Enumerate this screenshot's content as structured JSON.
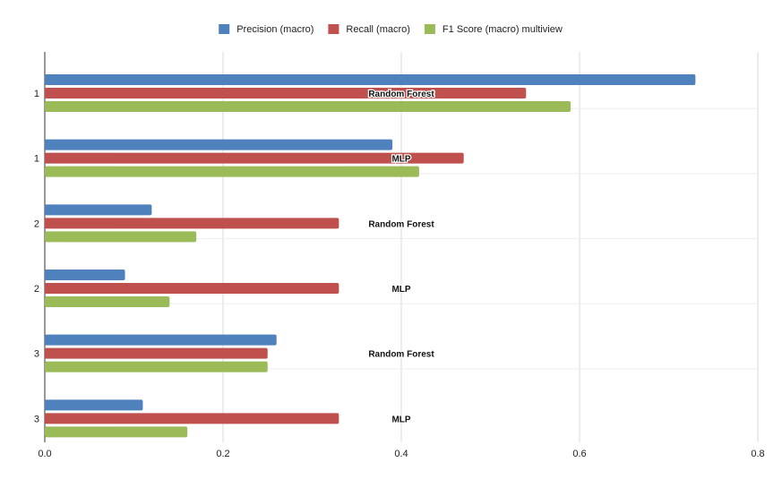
{
  "chart_data": {
    "type": "bar",
    "orientation": "horizontal",
    "title": "",
    "xlabel": "",
    "ylabel": "",
    "xlim": [
      0,
      0.8
    ],
    "x_ticks": [
      "0.0",
      "0.2",
      "0.4",
      "0.6",
      "0.8"
    ],
    "grid": true,
    "legend_position": "top-center",
    "categories": [
      "1",
      "1",
      "2",
      "2",
      "3",
      "3"
    ],
    "category_annotations": [
      "Random Forest",
      "MLP",
      "Random Forest",
      "MLP",
      "Random Forest",
      "MLP"
    ],
    "series": [
      {
        "name": "Precision (macro)",
        "color": "#4f81bd",
        "values": [
          0.73,
          0.39,
          0.12,
          0.09,
          0.26,
          0.11
        ]
      },
      {
        "name": "Recall (macro)",
        "color": "#c0504d",
        "values": [
          0.54,
          0.47,
          0.33,
          0.33,
          0.25,
          0.33
        ]
      },
      {
        "name": "F1 Score (macro) multiview",
        "color": "#9bbb59",
        "values": [
          0.59,
          0.42,
          0.17,
          0.14,
          0.25,
          0.16
        ]
      }
    ]
  }
}
